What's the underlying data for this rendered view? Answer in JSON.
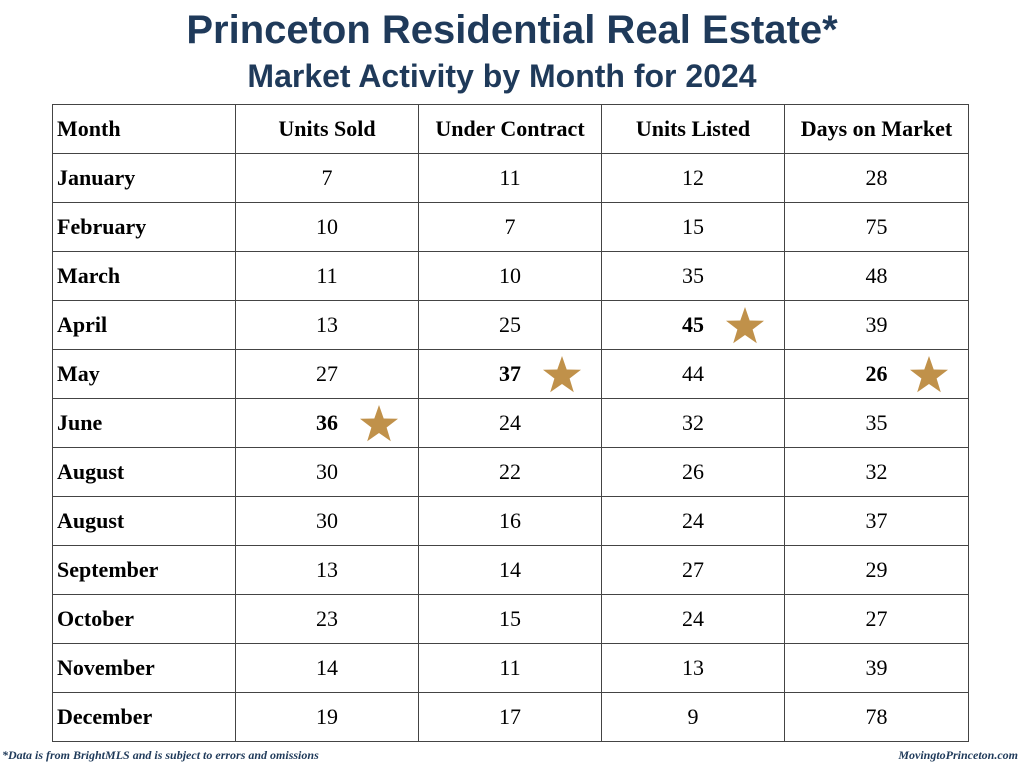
{
  "header": {
    "title": "Princeton Residential Real Estate*",
    "subtitle": "Market Activity by Month for 2024"
  },
  "table": {
    "columns": [
      "Month",
      "Units Sold",
      "Under Contract",
      "Units Listed",
      "Days on Market"
    ],
    "rows": [
      [
        "January",
        "7",
        "11",
        "12",
        "28"
      ],
      [
        "February",
        "10",
        "7",
        "15",
        "75"
      ],
      [
        "March",
        "11",
        "10",
        "35",
        "48"
      ],
      [
        "April",
        "13",
        "25",
        "45",
        "39"
      ],
      [
        "May",
        "27",
        "37",
        "44",
        "26"
      ],
      [
        "June",
        "36",
        "24",
        "32",
        "35"
      ],
      [
        "August",
        "30",
        "22",
        "26",
        "32"
      ],
      [
        "August",
        "30",
        "16",
        "24",
        "37"
      ],
      [
        "September",
        "13",
        "14",
        "27",
        "29"
      ],
      [
        "October",
        "23",
        "15",
        "24",
        "27"
      ],
      [
        "November",
        "14",
        "11",
        "13",
        "39"
      ],
      [
        "December",
        "19",
        "17",
        "9",
        "78"
      ]
    ],
    "starred": [
      [
        3,
        3
      ],
      [
        4,
        2
      ],
      [
        4,
        4
      ],
      [
        5,
        1
      ]
    ]
  },
  "footer": {
    "note": "*Data is from BrightMLS and is subject to errors and omissions",
    "site": "MovingtoPrinceton.com"
  }
}
